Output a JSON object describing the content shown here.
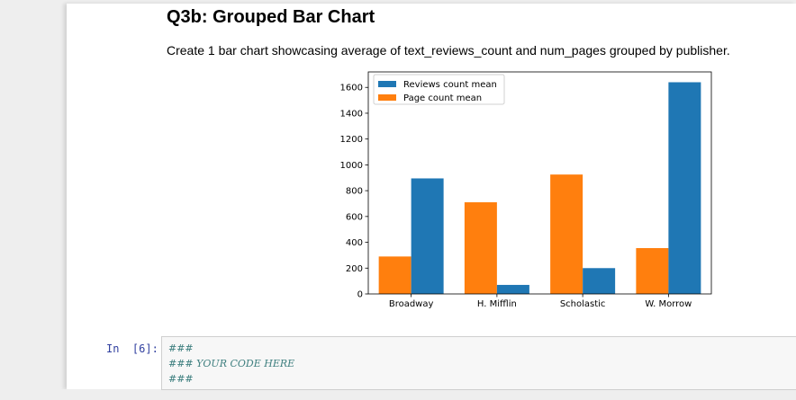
{
  "markdown": {
    "title": "Q3b: Grouped Bar Chart",
    "description": "Create 1 bar chart showcasing average of text_reviews_count and num_pages grouped by publisher."
  },
  "code_cell": {
    "prompt": "In  [6]:",
    "lines": [
      "###",
      "### YOUR CODE HERE",
      "###"
    ]
  },
  "chart_data": {
    "type": "bar",
    "categories": [
      "Broadway",
      "H. Mifflin",
      "Scholastic",
      "W. Morrow"
    ],
    "series": [
      {
        "name": "Page count mean",
        "color": "#ff7f0e",
        "values": [
          290,
          710,
          925,
          355
        ]
      },
      {
        "name": "Reviews count mean",
        "color": "#1f77b4",
        "values": [
          895,
          70,
          200,
          1640
        ]
      }
    ],
    "legend_order": [
      "Reviews count mean",
      "Page count mean"
    ],
    "legend_placement": "upper-left",
    "ylim": [
      0,
      1720
    ],
    "yticks": [
      0,
      200,
      400,
      600,
      800,
      1000,
      1200,
      1400,
      1600
    ],
    "grid": false
  }
}
